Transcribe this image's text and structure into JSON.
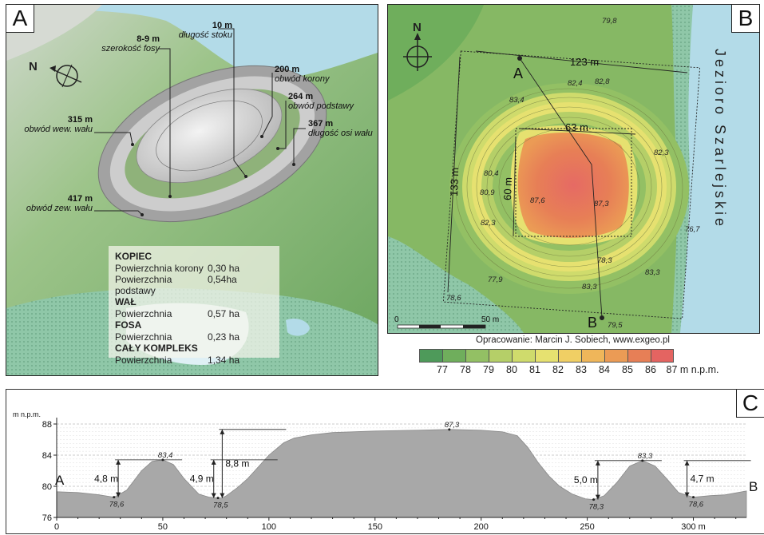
{
  "panel_a": {
    "letter": "A",
    "north": "N",
    "labels": [
      {
        "value": "8-9 m",
        "desc": "szerokość fosy"
      },
      {
        "value": "10 m",
        "desc": "długość stoku"
      },
      {
        "value": "200 m",
        "desc": "obwód korony"
      },
      {
        "value": "264 m",
        "desc": "obwód podstawy"
      },
      {
        "value": "367 m",
        "desc": "długość osi wału"
      },
      {
        "value": "315 m",
        "desc": "obwód wew. wału"
      },
      {
        "value": "417 m",
        "desc": "obwód zew. wału"
      }
    ],
    "stats": [
      {
        "heading": "KOPIEC",
        "rows": [
          [
            "Powierzchnia korony",
            "0,30 ha"
          ],
          [
            "Powierzchnia podstawy",
            "0,54ha"
          ]
        ]
      },
      {
        "heading": "WAŁ",
        "rows": [
          [
            "Powierzchnia",
            "0,57 ha"
          ]
        ]
      },
      {
        "heading": "FOSA",
        "rows": [
          [
            "Powierzchnia",
            "0,23 ha"
          ]
        ]
      },
      {
        "heading": "CAŁY KOMPLEKS",
        "rows": [
          [
            "Powierzchnia",
            "1,34 ha"
          ]
        ]
      }
    ]
  },
  "panel_b": {
    "letter": "B",
    "north": "N",
    "lake": "Jezioro Szarlejskie",
    "point_a": "A",
    "point_b": "B",
    "dim_width": "123 m",
    "dim_height": "133 m",
    "dim_inner_width": "63 m",
    "dim_inner_height": "60 m",
    "elevations": [
      "79,8",
      "82,4",
      "82,8",
      "83,4",
      "82,3",
      "80,4",
      "80,9",
      "87,6",
      "87,3",
      "82,3",
      "76,7",
      "78,3",
      "83,3",
      "83,3",
      "77,9",
      "78,6",
      "79,5"
    ],
    "scale_zero": "0",
    "scale_end": "50 m"
  },
  "credit": "Opracowanie: Marcin J. Sobiech, www.exgeo.pl",
  "legend": {
    "colors": [
      "#4e9a5a",
      "#6fae5c",
      "#93c064",
      "#b5cf68",
      "#cfdb6c",
      "#e6e170",
      "#f0cf64",
      "#efb65a",
      "#eb9b55",
      "#e77f56",
      "#e46461"
    ],
    "labels": [
      "77",
      "78",
      "79",
      "80",
      "81",
      "82",
      "83",
      "84",
      "85",
      "86",
      "87 m n.p.m."
    ]
  },
  "panel_c": {
    "letter": "C",
    "y_unit": "m n.p.m.",
    "end_a": "A",
    "end_b": "B",
    "chart_data": {
      "type": "area",
      "x_ticks": [
        "0",
        "50",
        "100",
        "150",
        "200",
        "250",
        "300 m"
      ],
      "y_ticks": [
        "76",
        "80",
        "84",
        "88"
      ],
      "xlim": [
        0,
        325
      ],
      "ylim": [
        76,
        88
      ],
      "x": [
        0,
        10,
        20,
        27,
        33,
        40,
        45,
        50,
        55,
        60,
        67,
        72,
        76,
        78,
        80,
        85,
        90,
        95,
        100,
        107,
        112,
        120,
        130,
        150,
        170,
        185,
        200,
        210,
        217,
        222,
        227,
        232,
        237,
        243,
        249,
        253,
        258,
        264,
        270,
        276,
        282,
        288,
        293,
        300,
        308,
        315,
        325
      ],
      "y": [
        79.3,
        79.2,
        78.9,
        78.6,
        79.5,
        82.0,
        83.2,
        83.4,
        82.8,
        81.0,
        79.0,
        78.6,
        78.5,
        78.5,
        78.8,
        79.8,
        81.0,
        82.5,
        84.0,
        85.6,
        86.2,
        86.6,
        86.9,
        87.1,
        87.2,
        87.3,
        87.2,
        87.0,
        86.5,
        85.0,
        83.0,
        81.3,
        80.0,
        79.0,
        78.4,
        78.3,
        78.8,
        80.5,
        82.6,
        83.3,
        82.6,
        80.8,
        79.2,
        78.6,
        78.8,
        78.9,
        79.4
      ],
      "point_labels": [
        {
          "x": 27,
          "y": 78.6,
          "text": "78,6"
        },
        {
          "x": 50,
          "y": 83.4,
          "text": "83,4"
        },
        {
          "x": 76,
          "y": 78.5,
          "text": "78,5"
        },
        {
          "x": 185,
          "y": 87.3,
          "text": "87,3"
        },
        {
          "x": 253,
          "y": 78.3,
          "text": "78,3"
        },
        {
          "x": 276,
          "y": 83.3,
          "text": "83,3"
        },
        {
          "x": 300,
          "y": 78.6,
          "text": "78,6"
        }
      ],
      "annotations": [
        {
          "x": 29,
          "from": 78.6,
          "to": 83.4,
          "text": "4,8 m"
        },
        {
          "x": 74,
          "from": 78.5,
          "to": 83.4,
          "text": "4,9 m"
        },
        {
          "x": 78,
          "from": 78.5,
          "to": 87.3,
          "text": "8,8 m"
        },
        {
          "x": 255,
          "from": 78.3,
          "to": 83.3,
          "text": "5,0 m"
        },
        {
          "x": 297,
          "from": 78.6,
          "to": 83.3,
          "text": "4,7 m"
        }
      ]
    }
  }
}
